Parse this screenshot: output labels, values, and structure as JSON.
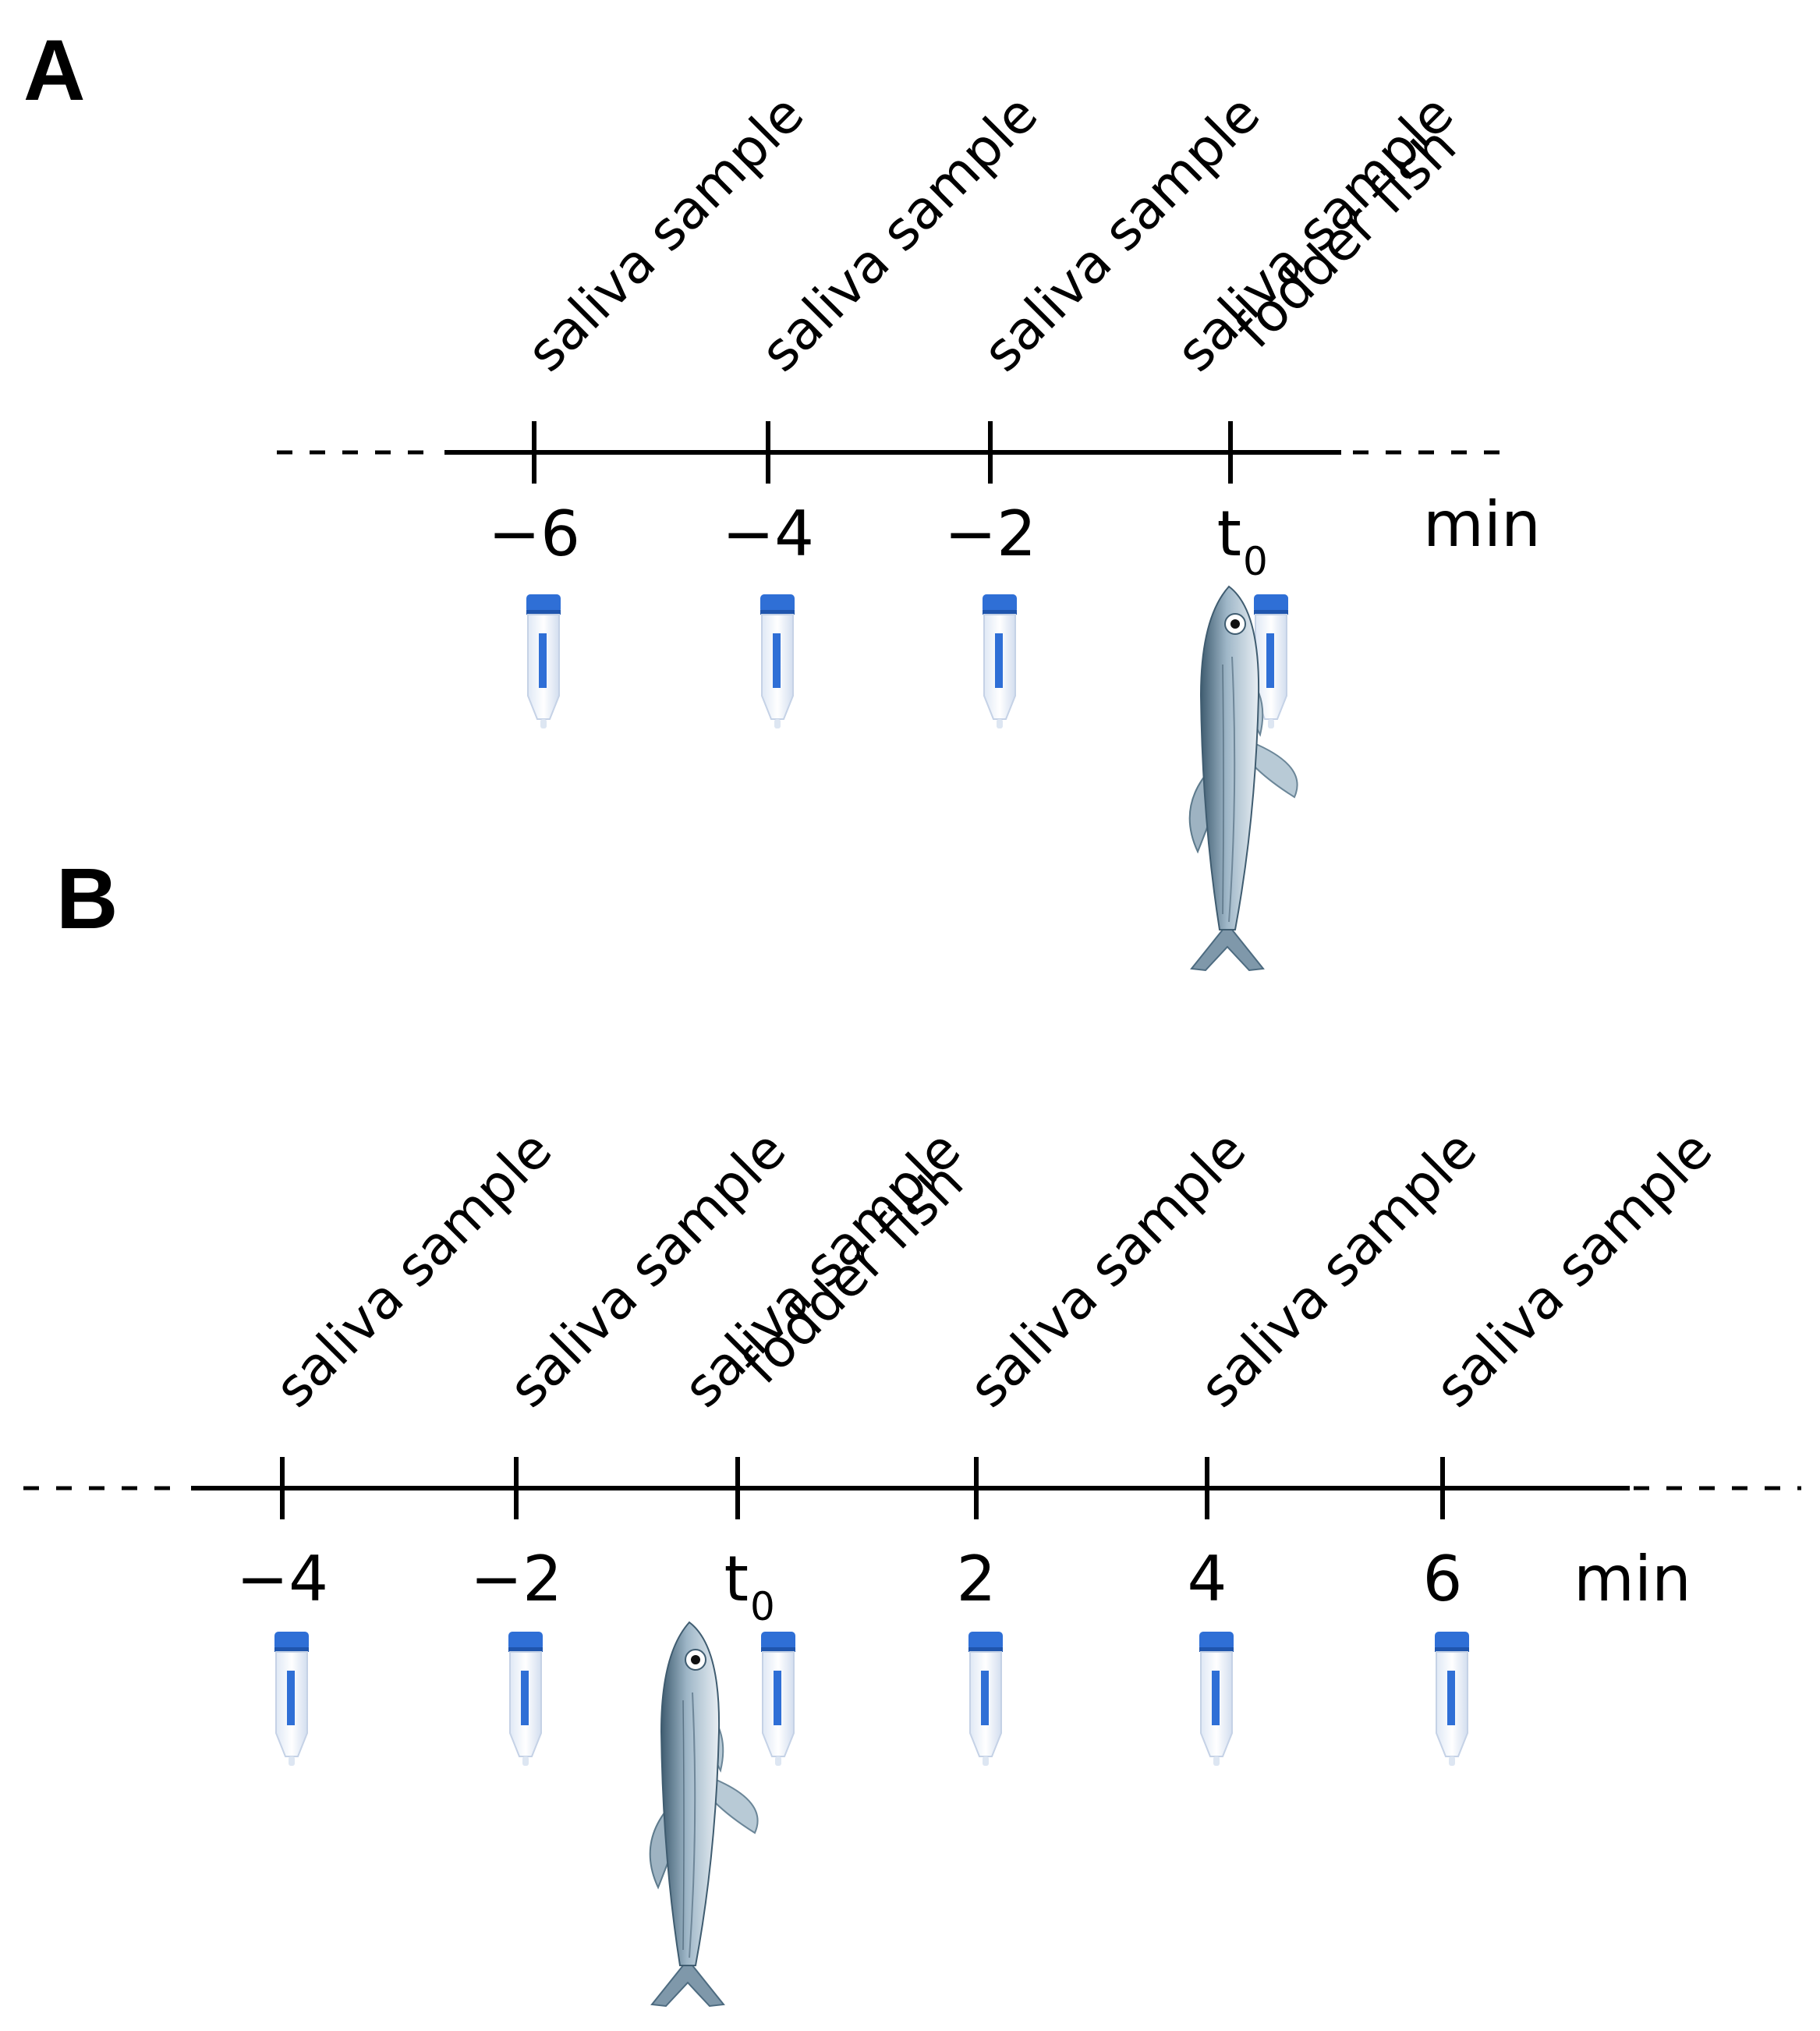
{
  "panels": [
    {
      "letter": "A",
      "unit": "min",
      "ticks": [
        {
          "label": "−6",
          "events": [
            "saliva sample"
          ],
          "fish": false
        },
        {
          "label": "−4",
          "events": [
            "saliva sample"
          ],
          "fish": false
        },
        {
          "label": "−2",
          "events": [
            "saliva sample"
          ],
          "fish": false
        },
        {
          "label": "t",
          "sub": "0",
          "events": [
            "fodder fish",
            "saliva sample"
          ],
          "fish": true
        }
      ]
    },
    {
      "letter": "B",
      "unit": "min",
      "ticks": [
        {
          "label": "−4",
          "events": [
            "saliva sample"
          ],
          "fish": false
        },
        {
          "label": "−2",
          "events": [
            "saliva sample"
          ],
          "fish": false
        },
        {
          "label": "t",
          "sub": "0",
          "events": [
            "fodder fish",
            "saliva sample"
          ],
          "fish": true
        },
        {
          "label": "2",
          "events": [
            "saliva sample"
          ],
          "fish": false
        },
        {
          "label": "4",
          "events": [
            "saliva sample"
          ],
          "fish": false
        },
        {
          "label": "6",
          "events": [
            "saliva sample"
          ],
          "fish": false
        }
      ]
    }
  ],
  "icons": {
    "tube": "sample-tube-icon",
    "fish": "fodder-fish-icon"
  },
  "colors": {
    "line": "#000000",
    "tube_cap": "#2f6fd6",
    "tube_body": "#eef3fb",
    "fish_body": "#9fb3c3",
    "fish_back": "#4d6b80"
  }
}
